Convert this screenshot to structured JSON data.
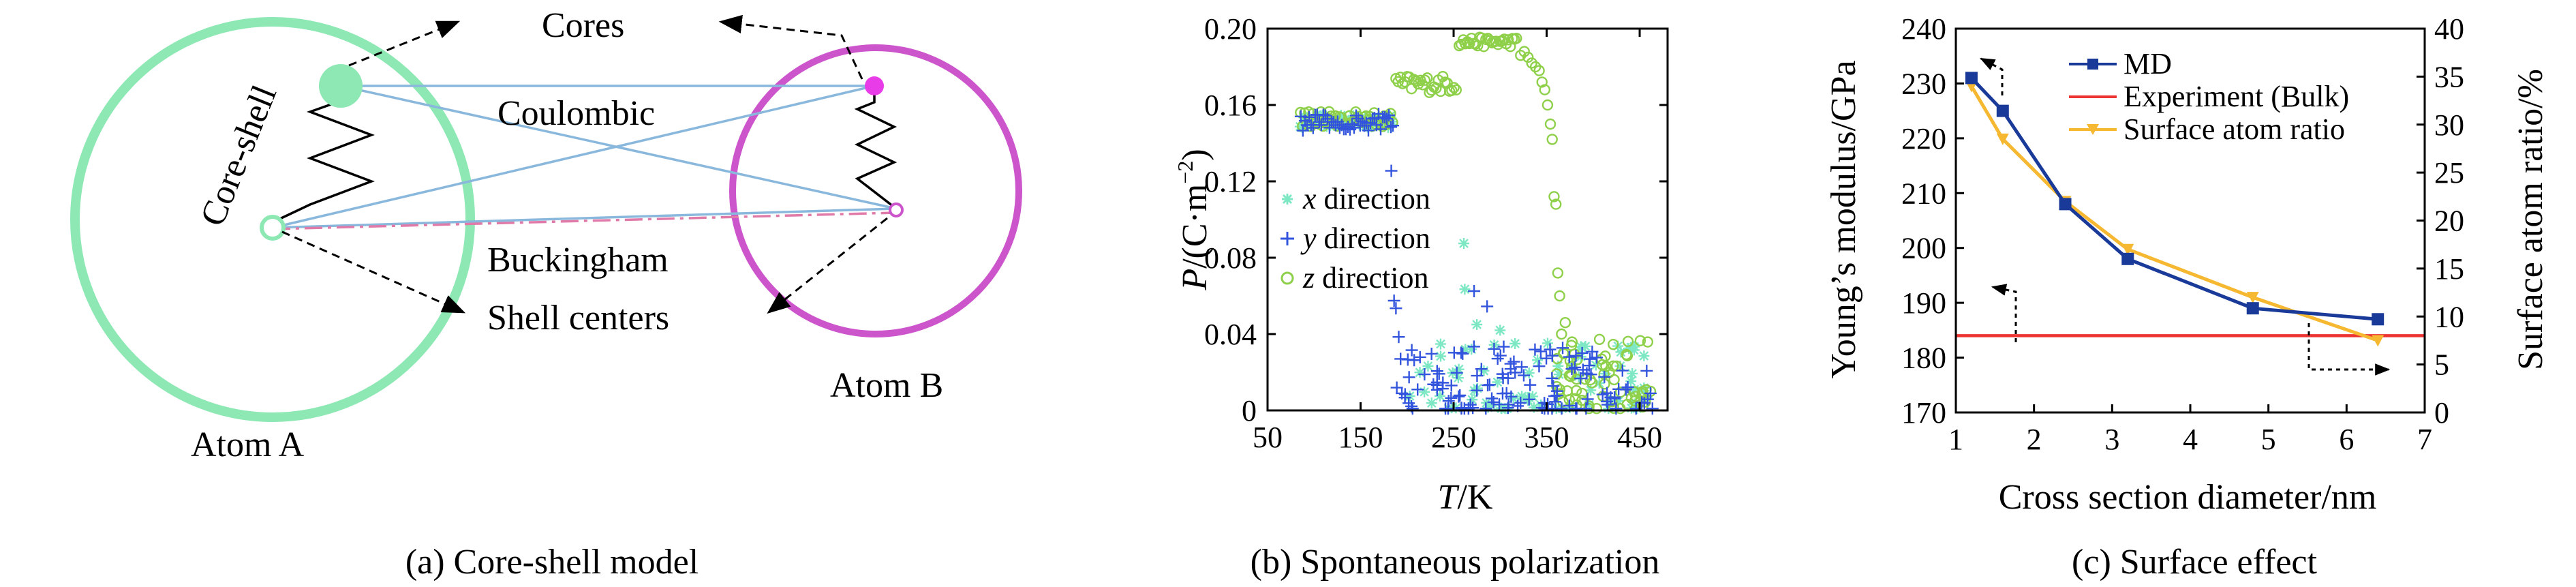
{
  "panels": {
    "a": {
      "caption": "(a) Core-shell model",
      "labels": {
        "cores": "Cores",
        "core_shell": "Core-shell",
        "coulombic": "Coulombic",
        "buckingham": "Buckingham",
        "shell_centers": "Shell centers",
        "atom_a": "Atom A",
        "atom_b": "Atom B"
      },
      "colors": {
        "atom_a": "#8de8b4",
        "atom_b": "#cc55cc",
        "core_b": "#e83ce8",
        "bond": "#8ab8dc",
        "buck": "#e07aa8"
      }
    },
    "b": {
      "caption": "(b) Spontaneous polarization"
    },
    "c": {
      "caption": "(c) Surface effect"
    }
  },
  "chart_data": [
    {
      "type": "scatter",
      "panel": "b",
      "ylabel_italic": "P",
      "ylabel_rest": "/(C·m",
      "ylabel_sup": "−2",
      "ylabel_close": ")",
      "xlabel_italic": "T",
      "xlabel_rest": "/K",
      "xlim": [
        50,
        480
      ],
      "ylim": [
        0,
        0.2
      ],
      "xticks": [
        50,
        150,
        250,
        350,
        450
      ],
      "yticks": [
        0,
        0.04,
        0.08,
        0.12,
        0.16,
        0.2
      ],
      "ytick_labels": [
        "0",
        "0.04",
        "0.08",
        "0.12",
        "0.16",
        "0.20"
      ],
      "legend_position": "left-middle",
      "series": [
        {
          "name_italic": "x",
          "name_rest": " direction",
          "marker": "asterisk",
          "color": "#7ee8c4"
        },
        {
          "name_italic": "y",
          "name_rest": " direction",
          "marker": "plus",
          "color": "#3355dd"
        },
        {
          "name_italic": "z",
          "name_rest": " direction",
          "marker": "circle",
          "color": "#8fd04a"
        }
      ]
    },
    {
      "type": "line",
      "panel": "c",
      "xlabel": "Cross section diameter/nm",
      "ylabel": "Young’s modulus/GPa",
      "y2label": "Surface atom ratio/%",
      "xlim": [
        1,
        7
      ],
      "ylim": [
        170,
        240
      ],
      "y2lim": [
        0,
        40
      ],
      "xticks": [
        1,
        2,
        3,
        4,
        5,
        6,
        7
      ],
      "yticks": [
        170,
        180,
        190,
        200,
        210,
        220,
        230,
        240
      ],
      "y2ticks": [
        0,
        5,
        10,
        15,
        20,
        25,
        30,
        35,
        40
      ],
      "legend_position": "top-center",
      "series": [
        {
          "name": "MD",
          "axis": "left",
          "color": "#1a3a99",
          "marker": "square",
          "x": [
            1.2,
            1.6,
            2.4,
            3.2,
            4.8,
            6.4
          ],
          "y": [
            231,
            225,
            208,
            198,
            189,
            187
          ]
        },
        {
          "name": "Experiment (Bulk)",
          "axis": "left",
          "color": "#ee3333",
          "marker": "none",
          "x": [
            1,
            7
          ],
          "y": [
            184,
            184
          ]
        },
        {
          "name": "Surface atom ratio",
          "axis": "right",
          "color": "#f5b830",
          "marker": "triangle-down",
          "x": [
            1.2,
            1.6,
            2.4,
            3.2,
            4.8,
            6.4
          ],
          "y": [
            34,
            28.5,
            22,
            17,
            12,
            7.5
          ]
        }
      ]
    }
  ]
}
